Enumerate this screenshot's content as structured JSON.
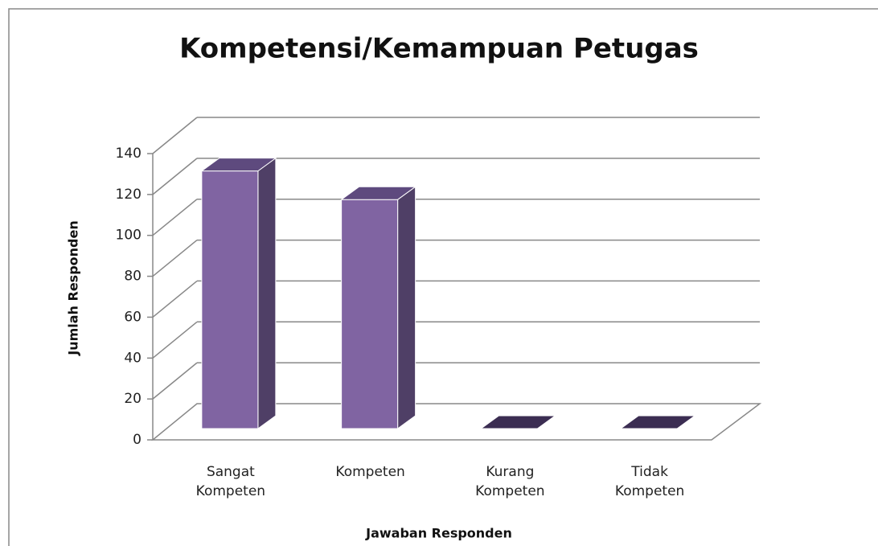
{
  "chart_data": {
    "type": "bar3d",
    "title": "Kompetensi/Kemampuan Petugas",
    "x_label": "Jawaban Responden",
    "y_label": "Jumlah Responden",
    "categories": [
      "Sangat Kompeten",
      "Kompeten",
      "Kurang Kompeten",
      "Tidak Kompeten"
    ],
    "values": [
      126,
      112,
      0,
      0
    ],
    "color": "#8064a2",
    "ylim": [
      0,
      140
    ],
    "yticks": [
      0,
      20,
      40,
      60,
      80,
      100,
      120,
      140
    ],
    "grid": true
  }
}
